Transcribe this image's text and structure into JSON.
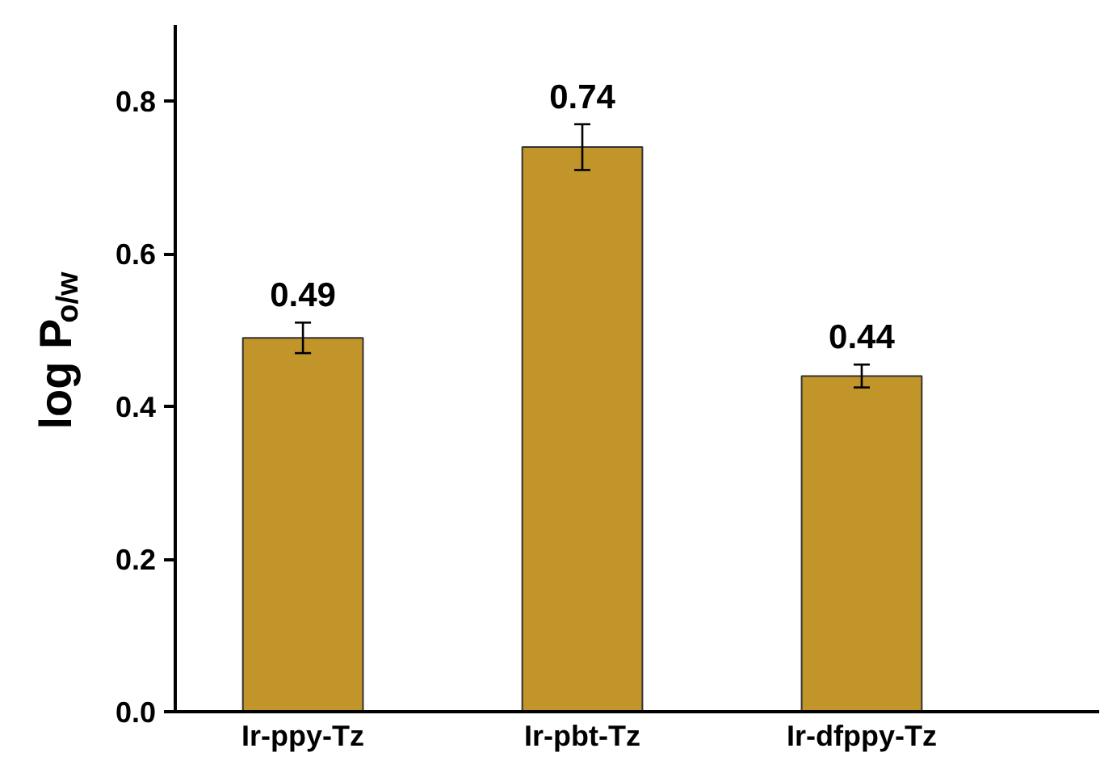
{
  "chart_data": {
    "type": "bar",
    "ylabel": "log P$_{o/w}$",
    "categories": [
      "Ir-ppy-Tz",
      "Ir-pbt-Tz",
      "Ir-dfppy-Tz"
    ],
    "values": [
      0.49,
      0.74,
      0.44
    ],
    "errors": [
      0.02,
      0.03,
      0.015
    ],
    "color": "#c2952a",
    "data_labels": true,
    "ylim": [
      0,
      0.9
    ],
    "yticks": [
      {
        "value": 0,
        "label": "0.0"
      },
      0.2,
      0.4,
      0.6,
      0.8
    ],
    "grid": false
  }
}
